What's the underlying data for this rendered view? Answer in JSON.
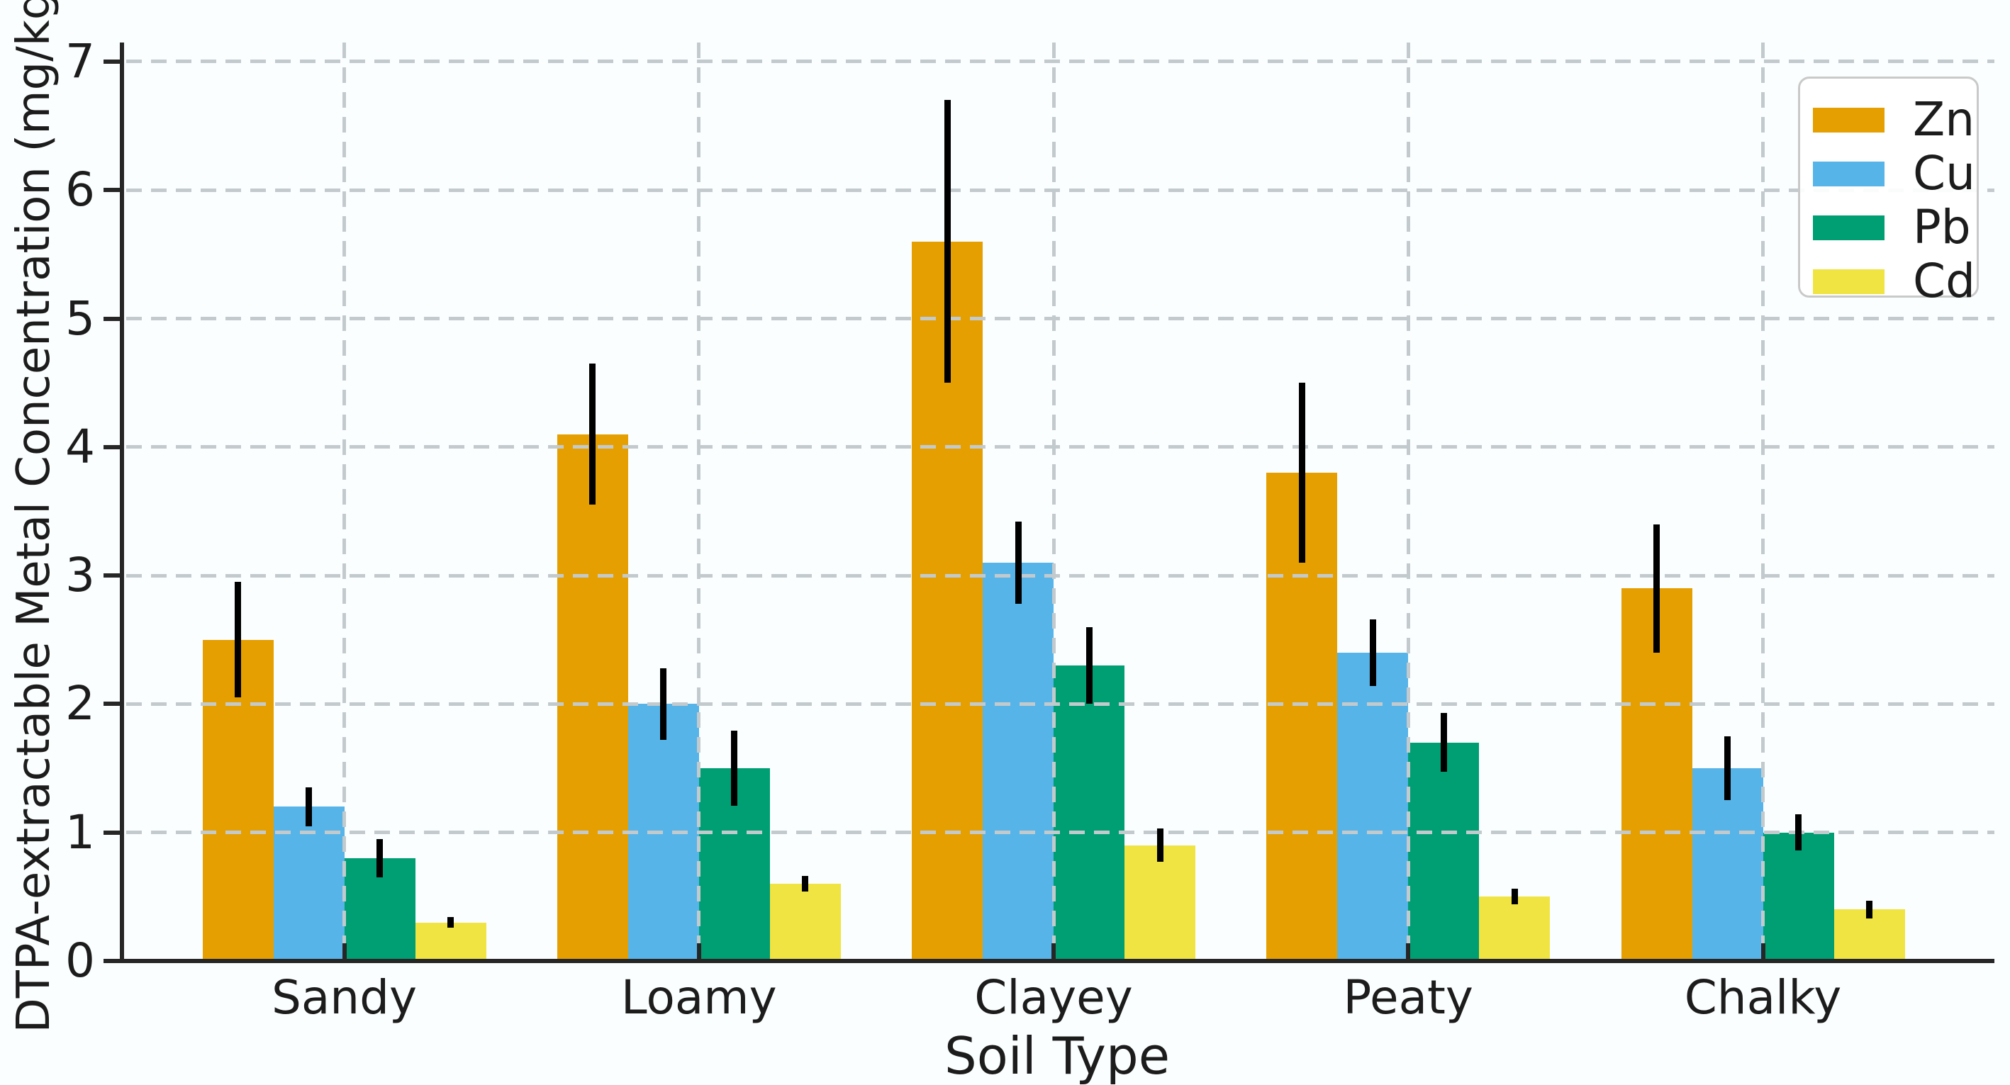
{
  "figure": {
    "background": "#FBFEFF",
    "text_color": "#1c1c1c",
    "axis_color": "#262626",
    "grid_color": "#c3cacd"
  },
  "chart_data": {
    "type": "bar",
    "title": "",
    "xlabel": "Soil Type",
    "ylabel": "DTPA-extractable Metal Concentration (mg/kg)",
    "categories": [
      "Sandy",
      "Loamy",
      "Clayey",
      "Peaty",
      "Chalky"
    ],
    "series": [
      {
        "name": "Zn",
        "color": "#E69F00",
        "values": [
          2.5,
          4.1,
          5.6,
          3.8,
          2.9
        ],
        "errors": [
          0.45,
          0.55,
          1.1,
          0.7,
          0.5
        ]
      },
      {
        "name": "Cu",
        "color": "#56B4E9",
        "values": [
          1.2,
          2.0,
          3.1,
          2.4,
          1.5
        ],
        "errors": [
          0.15,
          0.28,
          0.32,
          0.26,
          0.25
        ]
      },
      {
        "name": "Pb",
        "color": "#009E73",
        "values": [
          0.8,
          1.5,
          2.3,
          1.7,
          1.0
        ],
        "errors": [
          0.15,
          0.29,
          0.3,
          0.23,
          0.14
        ]
      },
      {
        "name": "Cd",
        "color": "#F0E442",
        "values": [
          0.3,
          0.6,
          0.9,
          0.5,
          0.4
        ],
        "errors": [
          0.04,
          0.06,
          0.13,
          0.06,
          0.07
        ]
      }
    ],
    "ylim": [
      0,
      7.15
    ],
    "yticks": [
      "0",
      "1",
      "2",
      "3",
      "4",
      "5",
      "6",
      "7"
    ],
    "grid": {
      "horizontal": true,
      "vertical": true,
      "style": "dashed",
      "above_bars": true
    },
    "legend": {
      "position": "upper right",
      "entries": [
        "Zn",
        "Cu",
        "Pb",
        "Cd"
      ]
    },
    "error_bars": {
      "color": "#000000",
      "caps": false
    }
  }
}
